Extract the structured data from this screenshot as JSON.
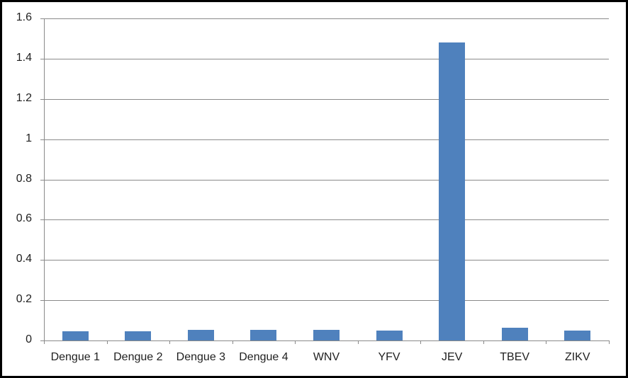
{
  "chart_data": {
    "type": "bar",
    "title": "",
    "categories": [
      "Dengue 1",
      "Dengue 2",
      "Dengue 3",
      "Dengue 4",
      "WNV",
      "YFV",
      "JEV",
      "TBEV",
      "ZIKV"
    ],
    "values": [
      0.046,
      0.046,
      0.053,
      0.053,
      0.053,
      0.049,
      1.48,
      0.063,
      0.049
    ],
    "xlabel": "",
    "ylabel": "",
    "ylim": [
      0,
      1.6
    ],
    "ytick_step": 0.2,
    "ytick_labels": [
      "0",
      "0.2",
      "0.4",
      "0.6",
      "0.8",
      "1",
      "1.2",
      "1.4",
      "1.6"
    ],
    "grid": true,
    "legend_position": "none",
    "bar_color": "#4F81BD",
    "axis_color": "#8A8A8A",
    "gridline_color": "#8A8A8A",
    "text_color": "#1f1f1f",
    "frame_color": "#000000"
  }
}
